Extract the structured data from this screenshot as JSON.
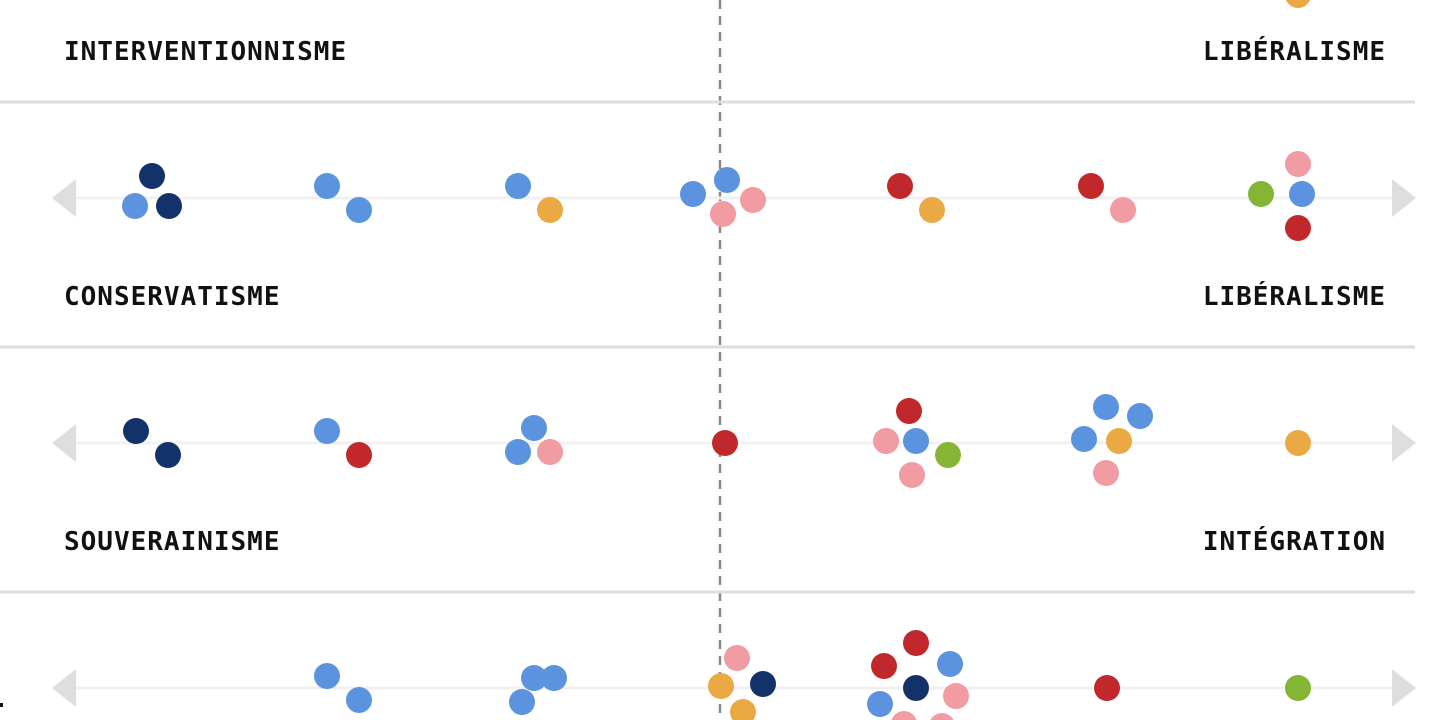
{
  "colors": {
    "navy": "#14326a",
    "blue": "#5b93de",
    "orange": "#eba943",
    "pink": "#f19ba3",
    "red": "#c1282b",
    "green": "#85b534",
    "divider": "#dddddd",
    "track": "#f0f0f0",
    "arrow": "#dedede",
    "center_line": "#8a8a8a"
  },
  "chart_data": {
    "type": "scatter",
    "title": "",
    "scale_positions": 7,
    "scales": [
      {
        "left_label": "INTERVENTIONNISME",
        "right_label": "LIBÉRALISME",
        "groups": [
          {
            "position": 7,
            "dots": [
              "orange"
            ]
          }
        ]
      },
      {
        "left_label": "CONSERVATISME",
        "right_label": "LIBÉRALISME",
        "groups": [
          {
            "position": 1,
            "dots": [
              "navy",
              "blue",
              "navy"
            ]
          },
          {
            "position": 2,
            "dots": [
              "blue",
              "blue"
            ]
          },
          {
            "position": 3,
            "dots": [
              "blue",
              "orange"
            ]
          },
          {
            "position": 4,
            "dots": [
              "blue",
              "blue",
              "pink",
              "pink"
            ]
          },
          {
            "position": 5,
            "dots": [
              "red",
              "orange"
            ]
          },
          {
            "position": 6,
            "dots": [
              "red",
              "pink"
            ]
          },
          {
            "position": 7,
            "dots": [
              "pink",
              "green",
              "blue",
              "red"
            ]
          }
        ]
      },
      {
        "left_label": "SOUVERAINISME",
        "right_label": "INTÉGRATION",
        "groups": [
          {
            "position": 1,
            "dots": [
              "navy",
              "navy"
            ]
          },
          {
            "position": 2,
            "dots": [
              "blue",
              "red"
            ]
          },
          {
            "position": 3,
            "dots": [
              "blue",
              "blue",
              "pink"
            ]
          },
          {
            "position": 4,
            "dots": [
              "red"
            ]
          },
          {
            "position": 5,
            "dots": [
              "red",
              "pink",
              "blue",
              "green",
              "pink"
            ]
          },
          {
            "position": 6,
            "dots": [
              "blue",
              "blue",
              "blue",
              "orange",
              "pink"
            ]
          },
          {
            "position": 7,
            "dots": [
              "orange"
            ]
          }
        ]
      },
      {
        "left_label": "",
        "right_label": "",
        "groups": [
          {
            "position": 2,
            "dots": [
              "blue",
              "blue"
            ]
          },
          {
            "position": 3,
            "dots": [
              "blue",
              "blue",
              "blue"
            ]
          },
          {
            "position": 4,
            "dots": [
              "pink",
              "orange",
              "navy",
              "orange"
            ]
          },
          {
            "position": 5,
            "dots": [
              "red",
              "red",
              "blue",
              "navy",
              "pink",
              "blue",
              "pink",
              "pink"
            ]
          },
          {
            "position": 6,
            "dots": [
              "red"
            ]
          },
          {
            "position": 7,
            "dots": [
              "green"
            ]
          }
        ]
      }
    ]
  }
}
